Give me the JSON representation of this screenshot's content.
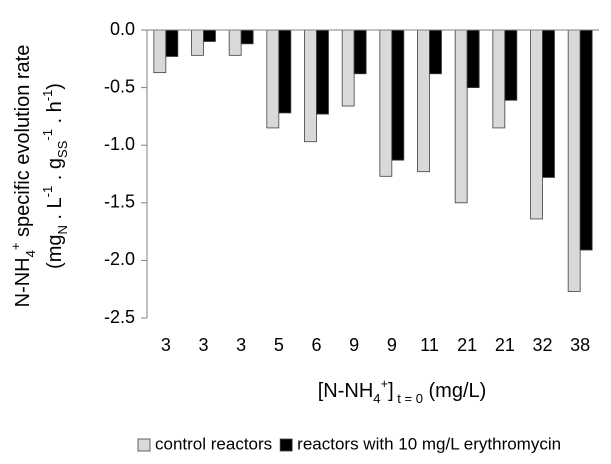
{
  "chart_data": {
    "type": "bar",
    "categories": [
      "3",
      "3",
      "3",
      "5",
      "6",
      "9",
      "9",
      "11",
      "21",
      "21",
      "32",
      "38"
    ],
    "series": [
      {
        "name": "control reactors",
        "color": "#d9d9d9",
        "values": [
          -0.37,
          -0.22,
          -0.22,
          -0.85,
          -0.97,
          -0.66,
          -1.27,
          -1.23,
          -1.5,
          -0.85,
          -1.64,
          -2.27
        ]
      },
      {
        "name": "reactors with 10 mg/L erythromycin",
        "color": "#000000",
        "values": [
          -0.23,
          -0.1,
          -0.12,
          -0.72,
          -0.73,
          -0.38,
          -1.13,
          -0.38,
          -0.5,
          -0.61,
          -1.28,
          -1.91
        ]
      }
    ],
    "ylim": [
      -2.5,
      0
    ],
    "yticks": [
      {
        "value": 0,
        "label": "0.0"
      },
      -0.5,
      {
        "value": -1,
        "label": "-1.0"
      },
      -1.5,
      {
        "value": -2,
        "label": "-2.0"
      },
      -2.5
    ],
    "ylabel": [
      [
        {
          "t": "N-NH"
        },
        {
          "t": "4",
          "sub": true
        },
        {
          "t": "+",
          "sup": true
        },
        {
          "t": " specific evolution rate"
        }
      ],
      [
        {
          "t": "(mg"
        },
        {
          "t": "N",
          "sub": true
        },
        {
          "t": " . L"
        },
        {
          "t": "-1",
          "sup": true
        },
        {
          "t": " . g"
        },
        {
          "t": "SS",
          "sub": true
        },
        {
          "t": "-1",
          "sup": true
        },
        {
          "t": " . h"
        },
        {
          "t": "-1",
          "sup": true
        },
        {
          "t": ")"
        }
      ]
    ],
    "xlabel": [
      {
        "t": "[N-NH"
      },
      {
        "t": "4",
        "sub": true
      },
      {
        "t": "+",
        "sup": true
      },
      {
        "t": "]"
      },
      {
        "t": " t = 0",
        "sub": true
      },
      {
        "t": " (mg/L)"
      }
    ],
    "legend": "bottom",
    "grid": false
  }
}
